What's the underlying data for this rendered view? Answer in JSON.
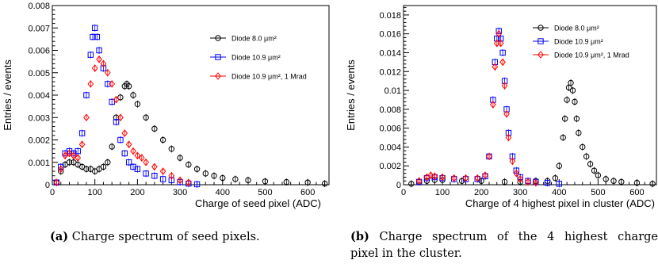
{
  "chart_data": [
    {
      "type": "scatter",
      "title": "",
      "xlabel": "Charge of seed pixel (ADC)",
      "ylabel": "Entries / events",
      "xlim": [
        0,
        650
      ],
      "ylim": [
        0,
        0.008
      ],
      "x_ticks": [
        "0",
        "100",
        "200",
        "300",
        "400",
        "500",
        "600"
      ],
      "y_ticks": [
        "0",
        "0.001",
        "0.002",
        "0.003",
        "0.004",
        "0.005",
        "0.006",
        "0.007",
        "0.008"
      ],
      "legend_position": "top-right",
      "series": [
        {
          "name": "Diode 8.0 μm²",
          "color": "#000000",
          "marker": "circle",
          "points": [
            [
              10,
              0.0001
            ],
            [
              20,
              0.0006
            ],
            [
              30,
              0.0009
            ],
            [
              40,
              0.001
            ],
            [
              50,
              0.001
            ],
            [
              60,
              0.0009
            ],
            [
              70,
              0.0008
            ],
            [
              80,
              0.0007
            ],
            [
              90,
              0.0007
            ],
            [
              100,
              0.0006
            ],
            [
              110,
              0.0007
            ],
            [
              120,
              0.0008
            ],
            [
              130,
              0.001
            ],
            [
              140,
              0.0017
            ],
            [
              150,
              0.003
            ],
            [
              160,
              0.0039
            ],
            [
              170,
              0.0044
            ],
            [
              175,
              0.0045
            ],
            [
              180,
              0.0044
            ],
            [
              190,
              0.004
            ],
            [
              200,
              0.0036
            ],
            [
              220,
              0.003
            ],
            [
              240,
              0.0025
            ],
            [
              260,
              0.002
            ],
            [
              280,
              0.0016
            ],
            [
              300,
              0.0012
            ],
            [
              320,
              0.0009
            ],
            [
              340,
              0.0007
            ],
            [
              360,
              0.0005
            ],
            [
              380,
              0.0004
            ],
            [
              400,
              0.0003
            ],
            [
              430,
              0.00025
            ],
            [
              460,
              0.0002
            ],
            [
              500,
              0.00015
            ],
            [
              550,
              0.00012
            ],
            [
              600,
              0.0001
            ],
            [
              640,
              5e-05
            ]
          ]
        },
        {
          "name": "Diode 10.9 μm²",
          "color": "#0000ff",
          "marker": "square",
          "points": [
            [
              10,
              0.0001
            ],
            [
              20,
              0.0008
            ],
            [
              30,
              0.0014
            ],
            [
              40,
              0.0015
            ],
            [
              50,
              0.0014
            ],
            [
              60,
              0.0015
            ],
            [
              70,
              0.0023
            ],
            [
              80,
              0.004
            ],
            [
              90,
              0.0058
            ],
            [
              95,
              0.0066
            ],
            [
              100,
              0.007
            ],
            [
              105,
              0.0066
            ],
            [
              110,
              0.006
            ],
            [
              120,
              0.0052
            ],
            [
              130,
              0.0045
            ],
            [
              140,
              0.0037
            ],
            [
              150,
              0.0028
            ],
            [
              160,
              0.002
            ],
            [
              170,
              0.0014
            ],
            [
              180,
              0.001
            ],
            [
              190,
              0.0008
            ],
            [
              200,
              0.0007
            ],
            [
              220,
              0.0005
            ],
            [
              240,
              0.0004
            ],
            [
              260,
              0.00025
            ],
            [
              280,
              0.0002
            ],
            [
              300,
              0.00012
            ],
            [
              320,
              5e-05
            ],
            [
              340,
              2e-05
            ]
          ]
        },
        {
          "name": "Diode 10.9 μm², 1 Mrad",
          "color": "#ff0000",
          "marker": "diamond",
          "points": [
            [
              10,
              0.0001
            ],
            [
              20,
              0.0007
            ],
            [
              30,
              0.0013
            ],
            [
              40,
              0.0014
            ],
            [
              50,
              0.0013
            ],
            [
              60,
              0.0012
            ],
            [
              70,
              0.0018
            ],
            [
              80,
              0.003
            ],
            [
              90,
              0.0045
            ],
            [
              100,
              0.0052
            ],
            [
              110,
              0.0056
            ],
            [
              120,
              0.0054
            ],
            [
              130,
              0.005
            ],
            [
              140,
              0.0045
            ],
            [
              150,
              0.0038
            ],
            [
              160,
              0.003
            ],
            [
              170,
              0.0023
            ],
            [
              180,
              0.0018
            ],
            [
              190,
              0.0015
            ],
            [
              200,
              0.0013
            ],
            [
              210,
              0.0012
            ],
            [
              220,
              0.001
            ],
            [
              240,
              0.0008
            ],
            [
              260,
              0.0006
            ],
            [
              280,
              0.0004
            ],
            [
              300,
              0.0002
            ],
            [
              320,
              0.0001
            ]
          ]
        }
      ]
    },
    {
      "type": "scatter",
      "title": "",
      "xlabel": "Charge of 4 highest pixel in cluster (ADC)",
      "ylabel": "Entries / events",
      "xlim": [
        0,
        650
      ],
      "ylim": [
        0,
        0.019
      ],
      "x_ticks": [
        "0",
        "100",
        "200",
        "300",
        "400",
        "500",
        "600"
      ],
      "y_ticks": [
        "0",
        "0.002",
        "0.004",
        "0.006",
        "0.008",
        "0.01",
        "0.012",
        "0.014",
        "0.016",
        "0.018"
      ],
      "legend_position": "top-right",
      "series": [
        {
          "name": "Diode 8.0 μm²",
          "color": "#000000",
          "marker": "circle",
          "points": [
            [
              20,
              0.0001
            ],
            [
              40,
              0.0003
            ],
            [
              60,
              0.0004
            ],
            [
              80,
              0.0005
            ],
            [
              100,
              0.0005
            ],
            [
              150,
              0.0004
            ],
            [
              200,
              0.0004
            ],
            [
              260,
              0.0003
            ],
            [
              300,
              0.0003
            ],
            [
              340,
              0.0004
            ],
            [
              370,
              0.0004
            ],
            [
              390,
              0.0007
            ],
            [
              400,
              0.002
            ],
            [
              410,
              0.005
            ],
            [
              415,
              0.007
            ],
            [
              420,
              0.009
            ],
            [
              425,
              0.0103
            ],
            [
              430,
              0.0108
            ],
            [
              435,
              0.01
            ],
            [
              440,
              0.0088
            ],
            [
              445,
              0.007
            ],
            [
              450,
              0.0055
            ],
            [
              460,
              0.004
            ],
            [
              470,
              0.003
            ],
            [
              480,
              0.0022
            ],
            [
              490,
              0.0015
            ],
            [
              500,
              0.001
            ],
            [
              520,
              0.0006
            ],
            [
              540,
              0.0004
            ],
            [
              560,
              0.0003
            ],
            [
              600,
              0.0002
            ],
            [
              640,
              0.0001
            ]
          ]
        },
        {
          "name": "Diode 10.9 μm²",
          "color": "#0000ff",
          "marker": "square",
          "points": [
            [
              40,
              0.0003
            ],
            [
              60,
              0.0007
            ],
            [
              80,
              0.0008
            ],
            [
              100,
              0.0007
            ],
            [
              130,
              0.0006
            ],
            [
              160,
              0.0006
            ],
            [
              190,
              0.0006
            ],
            [
              210,
              0.0009
            ],
            [
              220,
              0.003
            ],
            [
              230,
              0.009
            ],
            [
              235,
              0.013
            ],
            [
              240,
              0.0155
            ],
            [
              245,
              0.0163
            ],
            [
              250,
              0.0155
            ],
            [
              255,
              0.014
            ],
            [
              260,
              0.011
            ],
            [
              265,
              0.008
            ],
            [
              270,
              0.0055
            ],
            [
              280,
              0.003
            ],
            [
              290,
              0.0015
            ],
            [
              300,
              0.0008
            ],
            [
              320,
              0.0004
            ],
            [
              340,
              0.0003
            ],
            [
              370,
              0.0002
            ],
            [
              400,
              0.0001
            ]
          ]
        },
        {
          "name": "Diode 10.9 μm², 1 Mrad",
          "color": "#ff0000",
          "marker": "diamond",
          "points": [
            [
              40,
              0.0004
            ],
            [
              60,
              0.0008
            ],
            [
              70,
              0.001
            ],
            [
              80,
              0.0009
            ],
            [
              100,
              0.0008
            ],
            [
              130,
              0.0007
            ],
            [
              160,
              0.0007
            ],
            [
              190,
              0.0007
            ],
            [
              210,
              0.001
            ],
            [
              220,
              0.003
            ],
            [
              230,
              0.0085
            ],
            [
              235,
              0.0125
            ],
            [
              240,
              0.015
            ],
            [
              245,
              0.016
            ],
            [
              250,
              0.015
            ],
            [
              255,
              0.013
            ],
            [
              260,
              0.0105
            ],
            [
              265,
              0.0075
            ],
            [
              270,
              0.005
            ],
            [
              280,
              0.0025
            ],
            [
              290,
              0.0012
            ],
            [
              300,
              0.0006
            ],
            [
              320,
              0.0003
            ],
            [
              340,
              0.0002
            ]
          ]
        }
      ]
    }
  ],
  "captions": {
    "a": {
      "label": "(a)",
      "text": "Charge spectrum of seed pixels."
    },
    "b": {
      "label": "(b)",
      "line1": "Charge spectrum of the 4 highest charge",
      "line2": "pixel in the cluster."
    }
  }
}
